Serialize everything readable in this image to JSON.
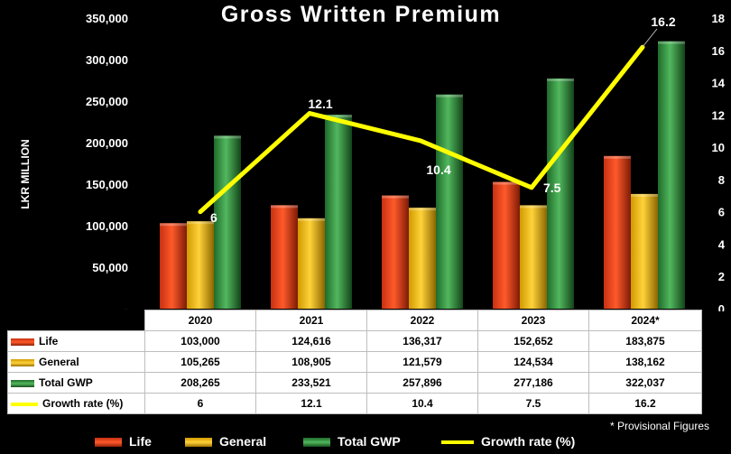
{
  "chart_data": {
    "type": "bar",
    "title": "Gross Written Premium",
    "ylabel": "LKR MILLION",
    "categories": [
      "2020",
      "2021",
      "2022",
      "2023",
      "2024*"
    ],
    "series": [
      {
        "name": "Life",
        "values": [
          103000,
          124616,
          136317,
          152652,
          183875
        ],
        "color": "#e8471c"
      },
      {
        "name": "General",
        "values": [
          105265,
          108905,
          121579,
          124534,
          138162
        ],
        "color": "#f5bd10"
      },
      {
        "name": "Total GWP",
        "values": [
          208265,
          233521,
          257896,
          277186,
          322037
        ],
        "color": "#3a9a46"
      }
    ],
    "line_series": {
      "name": "Growth rate (%)",
      "values": [
        6,
        12.1,
        10.4,
        7.5,
        16.2
      ],
      "color": "#ffff00",
      "axis": "right"
    },
    "ylim": [
      0,
      350000
    ],
    "y_ticks": [
      "-",
      "50,000",
      "100,000",
      "150,000",
      "200,000",
      "250,000",
      "300,000",
      "350,000"
    ],
    "y_tick_values": [
      0,
      50000,
      100000,
      150000,
      200000,
      250000,
      300000,
      350000
    ],
    "y2lim": [
      0,
      18
    ],
    "y2_ticks": [
      0,
      2,
      4,
      6,
      8,
      10,
      12,
      14,
      16,
      18
    ],
    "data_labels": [
      "6",
      "12.1",
      "10.4",
      "7.5",
      "16.2"
    ],
    "note": "* Provisional Figures",
    "legend_position": "bottom",
    "grid": false
  },
  "table": {
    "headers": [
      "2020",
      "2021",
      "2022",
      "2023",
      "2024*"
    ],
    "rows": [
      {
        "label": "Life",
        "values": [
          "103,000",
          "124,616",
          "136,317",
          "152,652",
          "183,875"
        ]
      },
      {
        "label": "General",
        "values": [
          "105,265",
          "108,905",
          "121,579",
          "124,534",
          "138,162"
        ]
      },
      {
        "label": "Total GWP",
        "values": [
          "208,265",
          "233,521",
          "257,896",
          "277,186",
          "322,037"
        ]
      },
      {
        "label": "Growth rate (%)",
        "values": [
          "6",
          "12.1",
          "10.4",
          "7.5",
          "16.2"
        ]
      }
    ]
  },
  "legend": [
    "Life",
    "General",
    "Total GWP",
    "Growth rate (%)"
  ]
}
